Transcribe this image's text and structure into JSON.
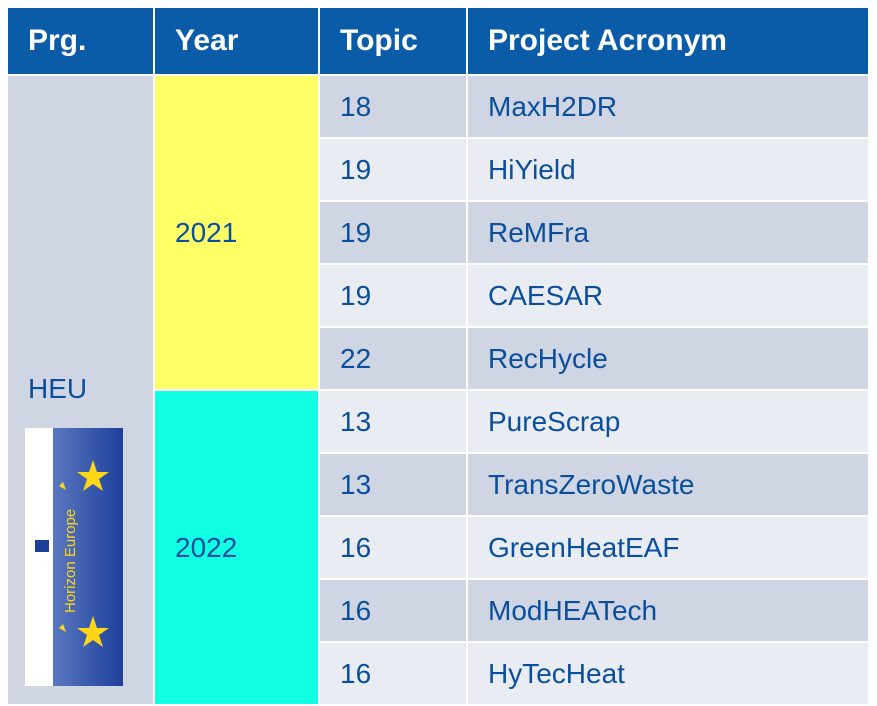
{
  "header": [
    "Prg.",
    "Year",
    "Topic",
    "Project Acronym"
  ],
  "program": "HEU",
  "logo_text": "Horizon Europe",
  "years": [
    {
      "year": "2021",
      "rows": [
        [
          18,
          "MaxH2DR"
        ],
        [
          19,
          "HiYield"
        ],
        [
          19,
          "ReMFra"
        ],
        [
          19,
          "CAESAR"
        ],
        [
          22,
          "RecHycle"
        ]
      ]
    },
    {
      "year": "2022",
      "rows": [
        [
          13,
          "PureScrap"
        ],
        [
          13,
          "TransZeroWaste"
        ],
        [
          16,
          "GreenHeatEAF"
        ],
        [
          16,
          "ModHEATech"
        ],
        [
          16,
          "HyTecHeat"
        ]
      ]
    }
  ]
}
